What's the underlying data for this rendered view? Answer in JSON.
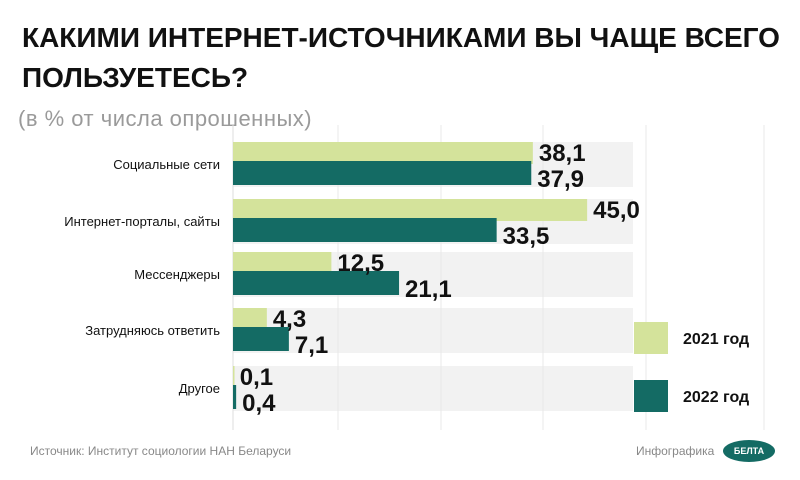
{
  "chart_data": {
    "type": "bar",
    "orientation": "horizontal",
    "title": "КАКИМИ ИНТЕРНЕТ-ИСТОЧНИКАМИ ВЫ ЧАЩЕ ВСЕГО ПОЛЬЗУЕТЕСЬ?",
    "subtitle": "(в % от числа опрошенных)",
    "categories": [
      "Социальные сети",
      "Интернет-порталы, сайты",
      "Мессенджеры",
      "Затрудняюсь ответить",
      "Другое"
    ],
    "series": [
      {
        "name": "2021 год",
        "color": "#d4e39b",
        "values": [
          38.1,
          45.0,
          12.5,
          4.3,
          0.1
        ],
        "labels": [
          "38,1",
          "45,0",
          "12,5",
          "4,3",
          "0,1"
        ]
      },
      {
        "name": "2022 год",
        "color": "#146b64",
        "values": [
          37.9,
          33.5,
          21.1,
          7.1,
          0.4
        ],
        "labels": [
          "37,9",
          "33,5",
          "21,1",
          "7,1",
          "0,4"
        ]
      }
    ],
    "xlim": [
      0,
      50
    ],
    "legend": "bottom-right",
    "grid": true
  },
  "footer": {
    "source": "Источник: Институт социологии НАН Беларуси",
    "credit": "Инфографика",
    "logo": "БЕЛТА"
  }
}
